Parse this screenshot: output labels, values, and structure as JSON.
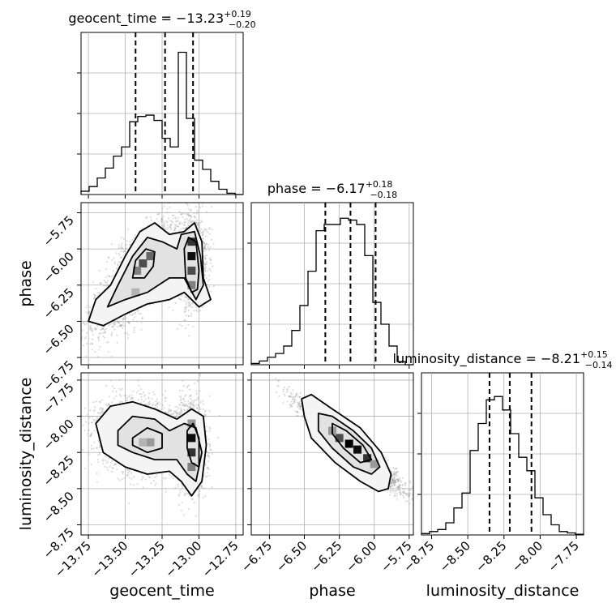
{
  "chart_data": [
    {
      "type": "histogram",
      "param": "geocent_time",
      "title": "geocent_time = −13.23",
      "title_sup": "+0.19",
      "title_sub": "−0.20",
      "xlim": [
        -13.8,
        -12.7
      ],
      "edges": [
        -13.8,
        -13.745,
        -13.69,
        -13.635,
        -13.58,
        -13.525,
        -13.47,
        -13.415,
        -13.36,
        -13.305,
        -13.25,
        -13.195,
        -13.14,
        -13.085,
        -13.03,
        -12.975,
        -12.92,
        -12.865,
        -12.81,
        -12.755,
        -12.7
      ],
      "counts": [
        5,
        12,
        25,
        40,
        58,
        72,
        110,
        118,
        120,
        112,
        85,
        72,
        215,
        115,
        52,
        38,
        20,
        8,
        2,
        0
      ],
      "quantiles": [
        -13.43,
        -13.23,
        -13.04
      ],
      "ylim": [
        0,
        245
      ],
      "grid": true
    },
    {
      "type": "histogram",
      "param": "phase",
      "title": "phase = −6.17",
      "title_sup": "+0.18",
      "title_sub": "−0.18",
      "xlim": [
        -6.88,
        -5.72
      ],
      "edges": [
        -6.88,
        -6.822,
        -6.764,
        -6.706,
        -6.648,
        -6.59,
        -6.532,
        -6.474,
        -6.416,
        -6.358,
        -6.3,
        -6.242,
        -6.184,
        -6.126,
        -6.068,
        -6.01,
        -5.952,
        -5.894,
        -5.836,
        -5.778,
        -5.72
      ],
      "counts": [
        2,
        6,
        12,
        18,
        30,
        55,
        95,
        150,
        215,
        225,
        225,
        235,
        232,
        225,
        175,
        100,
        65,
        30,
        5,
        0
      ],
      "quantiles": [
        -6.35,
        -6.17,
        -5.99
      ],
      "ylim": [
        0,
        260
      ],
      "grid": true
    },
    {
      "type": "histogram",
      "param": "luminosity_distance",
      "title": "luminosity_distance = −8.21",
      "title_sup": "+0.15",
      "title_sub": "−0.14",
      "xlim": [
        -8.82,
        -7.7
      ],
      "edges": [
        -8.82,
        -8.764,
        -8.708,
        -8.652,
        -8.596,
        -8.54,
        -8.484,
        -8.428,
        -8.372,
        -8.316,
        -8.26,
        -8.204,
        -8.148,
        -8.092,
        -8.036,
        -7.98,
        -7.924,
        -7.868,
        -7.812,
        -7.756,
        -7.7
      ],
      "counts": [
        2,
        5,
        8,
        18,
        40,
        62,
        125,
        165,
        200,
        205,
        185,
        150,
        115,
        95,
        55,
        30,
        15,
        5,
        3,
        1
      ],
      "quantiles": [
        -8.35,
        -8.21,
        -8.06
      ],
      "ylim": [
        0,
        240
      ],
      "grid": true
    },
    {
      "type": "2d_density",
      "xparam": "geocent_time",
      "yparam": "phase",
      "xlim": [
        -13.8,
        -12.7
      ],
      "ylim": [
        -6.8,
        -5.68
      ],
      "grid": true
    },
    {
      "type": "2d_density",
      "xparam": "geocent_time",
      "yparam": "luminosity_distance",
      "xlim": [
        -13.8,
        -12.7
      ],
      "ylim": [
        -8.82,
        -7.7
      ],
      "grid": true
    },
    {
      "type": "2d_density",
      "xparam": "phase",
      "yparam": "luminosity_distance",
      "xlim": [
        -6.88,
        -5.72
      ],
      "ylim": [
        -8.82,
        -7.7
      ],
      "grid": true
    }
  ],
  "axes": {
    "geocent_time": {
      "label": "geocent_time",
      "ticks": [
        -13.75,
        -13.5,
        -13.25,
        -13.0,
        -12.75
      ],
      "ticklabels": [
        "−13.75",
        "−13.50",
        "−13.25",
        "−13.00",
        "−12.75"
      ]
    },
    "phase": {
      "label": "phase",
      "ticks": [
        -6.75,
        -6.5,
        -6.25,
        -6.0,
        -5.75
      ],
      "ticklabels": [
        "−6.75",
        "−6.50",
        "−6.25",
        "−6.00",
        "−5.75"
      ]
    },
    "luminosity_distance": {
      "label": "luminosity_distance",
      "ticks": [
        -8.75,
        -8.5,
        -8.25,
        -8.0,
        -7.75
      ],
      "ticklabels": [
        "−8.75",
        "−8.50",
        "−8.25",
        "−8.00",
        "−7.75"
      ]
    }
  },
  "colors": {
    "hist": "#000000",
    "density": "#000000",
    "scatter": "#9a9a9a",
    "grid": "#b0b0b0"
  }
}
